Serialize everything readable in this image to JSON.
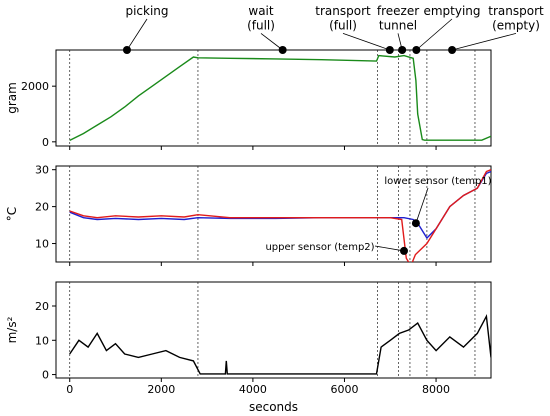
{
  "figure": {
    "xlabel": "seconds",
    "x_ticks": [
      "0",
      "2000",
      "4000",
      "6000",
      "8000"
    ]
  },
  "chart_data": [
    {
      "type": "line",
      "ylabel": "gram",
      "xlim": [
        -300,
        9200
      ],
      "ylim": [
        -150,
        3300
      ],
      "yticks": [
        0,
        2000
      ],
      "y_tick_labels": [
        "0",
        "2000"
      ],
      "x_tick_values": [
        0,
        2000,
        4000,
        6000,
        8000
      ],
      "grid": false,
      "series": [
        {
          "color": "#1a8a1a",
          "x": [
            0,
            300,
            600,
            900,
            1200,
            1500,
            1800,
            2100,
            2400,
            2700,
            2800,
            3500,
            4500,
            5500,
            6700,
            6750,
            7100,
            7300,
            7500,
            7560,
            7600,
            7700,
            7750,
            8000,
            8500,
            9000,
            9200
          ],
          "y": [
            50,
            300,
            600,
            900,
            1250,
            1650,
            2000,
            2350,
            2700,
            3050,
            3020,
            3000,
            2980,
            2950,
            2900,
            3100,
            3050,
            3100,
            3000,
            2200,
            1000,
            80,
            60,
            60,
            60,
            60,
            200
          ]
        }
      ],
      "annotations_top": [
        {
          "text": "picking",
          "x": 1250
        },
        {
          "text": "wait\n(full)",
          "x": 4650
        },
        {
          "text": "transport\n(full)",
          "x": 6990
        },
        {
          "text": "freezer\ntunnel",
          "x": 7260
        },
        {
          "text": "emptying",
          "x": 7570
        },
        {
          "text": "transport\n(empty)",
          "x": 8350
        }
      ]
    },
    {
      "type": "line",
      "ylabel": "°C",
      "xlim": [
        -300,
        9200
      ],
      "ylim": [
        5,
        31
      ],
      "yticks": [
        10,
        20,
        30
      ],
      "y_tick_labels": [
        "10",
        "20",
        "30"
      ],
      "x_tick_values": [
        0,
        2000,
        4000,
        6000,
        8000
      ],
      "grid": false,
      "series": [
        {
          "name": "lower sensor (temp1)",
          "color": "#1f1fcf",
          "x": [
            0,
            300,
            600,
            1000,
            1500,
            2000,
            2500,
            2800,
            3500,
            4500,
            5500,
            6500,
            7000,
            7300,
            7500,
            7600,
            7800,
            8000,
            8300,
            8600,
            8900,
            9100,
            9200
          ],
          "y": [
            18.5,
            17,
            16.5,
            16.8,
            16.5,
            16.8,
            16.5,
            17,
            16.8,
            16.8,
            17,
            17,
            17,
            17,
            16.5,
            15.5,
            11.5,
            14,
            20,
            23,
            25,
            29,
            29.5
          ]
        },
        {
          "name": "upper sensor (temp2)",
          "color": "#e01b1b",
          "x": [
            0,
            300,
            600,
            1000,
            1500,
            2000,
            2500,
            2800,
            3500,
            4500,
            5500,
            6500,
            7000,
            7250,
            7350,
            7450,
            7550,
            7800,
            8000,
            8300,
            8600,
            8900,
            9100,
            9200
          ],
          "y": [
            18.8,
            17.5,
            17,
            17.5,
            17.2,
            17.5,
            17.2,
            17.8,
            17,
            17,
            17,
            17,
            17,
            16.5,
            6,
            4,
            7,
            10,
            14,
            20,
            23,
            25,
            29.5,
            30
          ]
        }
      ],
      "annotations": [
        {
          "text": "lower sensor (temp1)",
          "x": 7560,
          "y": 15.5
        },
        {
          "text": "upper sensor (temp2)",
          "x": 7300,
          "y": 8
        }
      ]
    },
    {
      "type": "line",
      "ylabel": "m/s²",
      "xlim": [
        -300,
        9200
      ],
      "ylim": [
        -1,
        27
      ],
      "yticks": [
        0,
        10,
        20
      ],
      "y_tick_labels": [
        "0",
        "10",
        "20"
      ],
      "x_tick_values": [
        0,
        2000,
        4000,
        6000,
        8000
      ],
      "grid": false,
      "series": [
        {
          "color": "#000000",
          "x": [
            0,
            200,
            400,
            600,
            800,
            1000,
            1200,
            1500,
            1800,
            2100,
            2400,
            2700,
            2850,
            3400,
            3420,
            3440,
            4000,
            5000,
            6000,
            6700,
            6800,
            7000,
            7200,
            7400,
            7600,
            7800,
            8000,
            8300,
            8600,
            8900,
            9100,
            9200
          ],
          "y": [
            6,
            10,
            8,
            12,
            7,
            9,
            6,
            5,
            6,
            7,
            5,
            4,
            0.2,
            0.2,
            4,
            0.2,
            0.2,
            0.2,
            0.2,
            0.2,
            8,
            10,
            12,
            13,
            15,
            10,
            7,
            11,
            8,
            12,
            17,
            5
          ]
        }
      ]
    }
  ],
  "phase_boundaries_seconds": [
    0,
    2800,
    6720,
    7180,
    7430,
    7800,
    8850
  ]
}
